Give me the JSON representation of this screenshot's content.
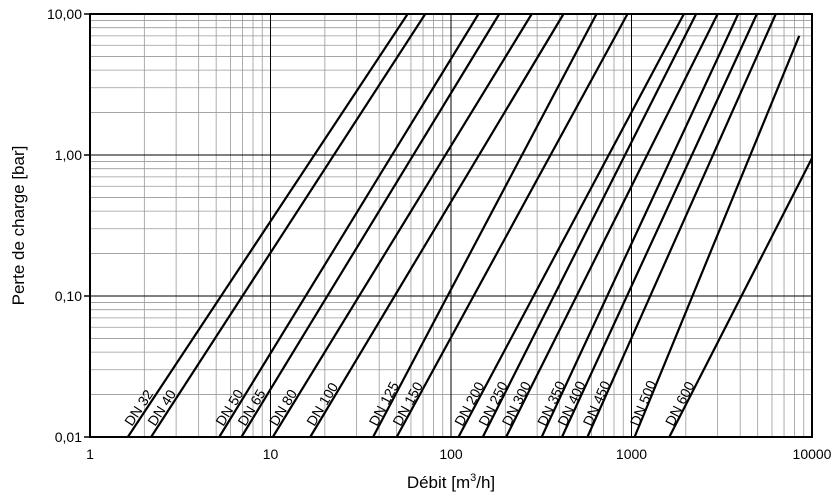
{
  "chart_data": {
    "type": "line",
    "title": "",
    "xlabel": "Débit [m³/h]",
    "xlabel_parts": {
      "before": "Débit [m",
      "sup": "3",
      "after": "/h]"
    },
    "ylabel": "Perte de charge [bar]",
    "xscale": "log",
    "yscale": "log",
    "xlim": [
      1,
      10000
    ],
    "ylim": [
      0.01,
      10
    ],
    "grid": true,
    "legend": "none (series labelled directly along the bottom)",
    "x_ticks": [
      {
        "value": 1,
        "label": "1"
      },
      {
        "value": 10,
        "label": "10"
      },
      {
        "value": 100,
        "label": "100"
      },
      {
        "value": 1000,
        "label": "1000"
      },
      {
        "value": 10000,
        "label": "10000"
      }
    ],
    "y_ticks": [
      {
        "value": 0.01,
        "label": "0,01"
      },
      {
        "value": 0.1,
        "label": "0,10"
      },
      {
        "value": 1,
        "label": "1,00"
      },
      {
        "value": 10,
        "label": "10,00"
      }
    ],
    "series": [
      {
        "name": "DN 32",
        "points": [
          [
            1.62,
            0.01
          ],
          [
            57.5,
            10
          ]
        ]
      },
      {
        "name": "DN 40",
        "points": [
          [
            2.18,
            0.01
          ],
          [
            72,
            10
          ]
        ]
      },
      {
        "name": "DN 50",
        "points": [
          [
            5.2,
            0.01
          ],
          [
            142,
            10
          ]
        ]
      },
      {
        "name": "DN 65",
        "points": [
          [
            6.9,
            0.01
          ],
          [
            185,
            10
          ]
        ]
      },
      {
        "name": "DN 80",
        "points": [
          [
            10.3,
            0.01
          ],
          [
            280,
            10
          ]
        ]
      },
      {
        "name": "DN 100",
        "points": [
          [
            16.6,
            0.01
          ],
          [
            420,
            10
          ]
        ]
      },
      {
        "name": "DN 125",
        "points": [
          [
            37,
            0.01
          ],
          [
            640,
            10
          ]
        ]
      },
      {
        "name": "DN 150",
        "points": [
          [
            50,
            0.01
          ],
          [
            950,
            10
          ]
        ]
      },
      {
        "name": "DN 200",
        "points": [
          [
            110,
            0.01
          ],
          [
            1950,
            10
          ]
        ]
      },
      {
        "name": "DN 250",
        "points": [
          [
            150,
            0.01
          ],
          [
            2280,
            10
          ]
        ]
      },
      {
        "name": "DN 300",
        "points": [
          [
            202,
            0.01
          ],
          [
            3000,
            10
          ]
        ]
      },
      {
        "name": "DN 350",
        "points": [
          [
            318,
            0.01
          ],
          [
            3900,
            10
          ]
        ]
      },
      {
        "name": "DN 400",
        "points": [
          [
            412,
            0.01
          ],
          [
            4950,
            10
          ]
        ]
      },
      {
        "name": "DN 450",
        "points": [
          [
            570,
            0.01
          ],
          [
            6300,
            10
          ]
        ]
      },
      {
        "name": "DN 500",
        "points": [
          [
            1040,
            0.01
          ],
          [
            8500,
            7.0
          ]
        ]
      },
      {
        "name": "DN 600",
        "points": [
          [
            1620,
            0.01
          ],
          [
            10000,
            0.95
          ]
        ]
      }
    ]
  }
}
